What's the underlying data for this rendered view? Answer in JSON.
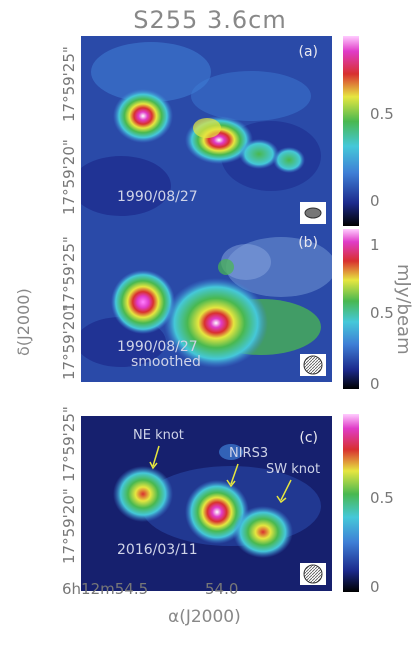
{
  "figure": {
    "title": "S255   3.6cm",
    "x_axis_label": "α(J2000)",
    "y_axis_label": "δ(J2000)",
    "colorbar_unit": "mJy/beam",
    "x_ticks": [
      "6h12m54.5",
      "54.0"
    ],
    "y_ticks": [
      "17°59'20\"",
      "17°59'25\""
    ]
  },
  "panels": [
    {
      "label": "(a)",
      "date": "1990/08/27",
      "subtitle": "",
      "colorbar_ticks": [
        "0.5",
        "0"
      ]
    },
    {
      "label": "(b)",
      "date": "1990/08/27",
      "subtitle": "smoothed",
      "colorbar_ticks": [
        "1",
        "0.5",
        "0"
      ]
    },
    {
      "label": "(c)",
      "date": "2016/03/11",
      "subtitle": "",
      "colorbar_ticks": [
        "0.5",
        "0"
      ]
    }
  ],
  "annotations": {
    "ne_knot": "NE knot",
    "nirs3": "NIRS3",
    "sw_knot": "SW knot"
  },
  "colors": {
    "background_low": "#1c2a8c",
    "mid_blue": "#3f7fd6",
    "cyan": "#45c8d9",
    "green": "#49b850",
    "yellow": "#e6e640",
    "red": "#d8302f",
    "magenta": "#e03cc8"
  }
}
